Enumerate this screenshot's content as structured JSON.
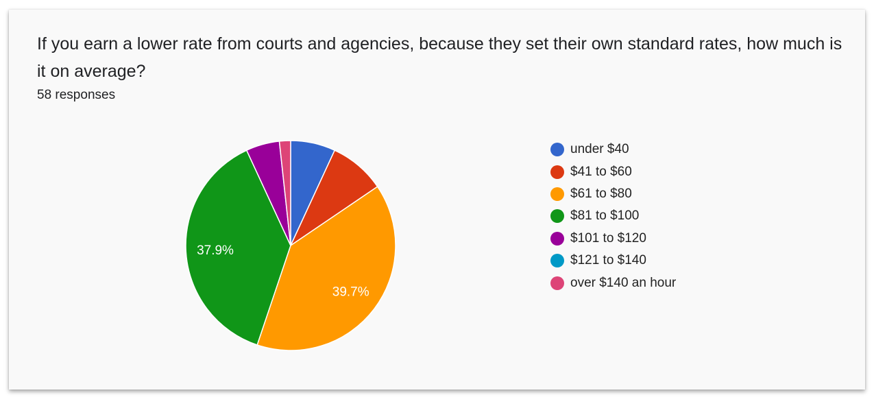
{
  "question": "If you earn a lower rate from courts and agencies, because they set their own standard rates, how much is it on average?",
  "responses": "58 responses",
  "chart_data": {
    "type": "pie",
    "total": 58,
    "categories": [
      "under $40",
      "$41 to $60",
      "$61 to $80",
      "$81 to $100",
      "$101 to $120",
      "$121 to $140",
      "over $140 an hour"
    ],
    "values": [
      4,
      5,
      23,
      22,
      3,
      0,
      1
    ],
    "colors": [
      "#3366cc",
      "#dc3912",
      "#ff9900",
      "#109618",
      "#990099",
      "#0099c6",
      "#dd4477"
    ],
    "slice_labels": [
      "",
      "",
      "39.7%",
      "37.9%",
      "",
      "",
      ""
    ],
    "legend_position": "right",
    "start_angle_deg": 90
  }
}
